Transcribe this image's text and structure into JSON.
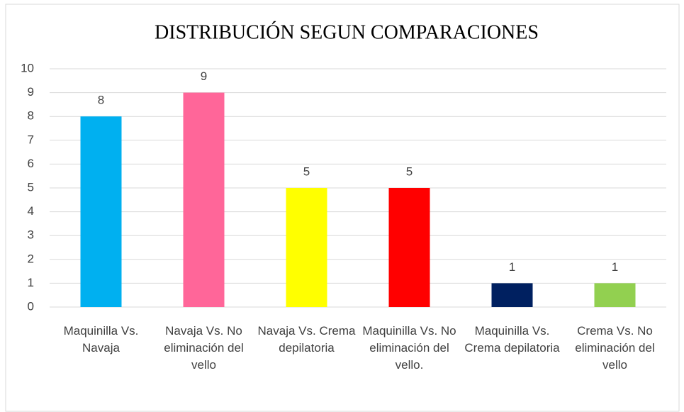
{
  "chart_data": {
    "type": "bar",
    "title": "DISTRIBUCIÓN SEGUN COMPARACIONES",
    "categories": [
      "Maquinilla Vs. Navaja",
      "Navaja Vs. No eliminación del vello",
      "Navaja Vs. Crema depilatoria",
      "Maquinilla Vs. No eliminación del vello.",
      "Maquinilla Vs. Crema depilatoria",
      "Crema Vs. No eliminación del vello"
    ],
    "values": [
      8,
      9,
      5,
      5,
      1,
      1
    ],
    "colors": [
      "#00b0f0",
      "#ff6699",
      "#ffff00",
      "#ff0000",
      "#002060",
      "#92d050"
    ],
    "ylim": [
      0,
      10
    ],
    "yticks": [
      0,
      1,
      2,
      3,
      4,
      5,
      6,
      7,
      8,
      9,
      10
    ],
    "grid": true
  }
}
